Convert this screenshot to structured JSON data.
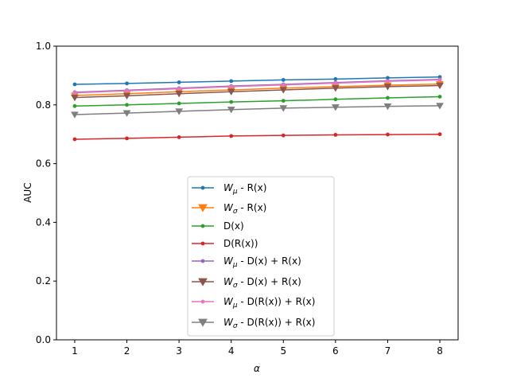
{
  "chart_data": {
    "type": "line",
    "title": "",
    "xlabel": "α",
    "ylabel": "AUC",
    "xlim": [
      0.65,
      8.35
    ],
    "ylim": [
      0.0,
      1.0
    ],
    "x": [
      1,
      2,
      3,
      4,
      5,
      6,
      7,
      8
    ],
    "xticks": [
      "1",
      "2",
      "3",
      "4",
      "5",
      "6",
      "7",
      "8"
    ],
    "yticks": [
      "0.0",
      "0.2",
      "0.4",
      "0.6",
      "0.8",
      "1.0"
    ],
    "grid": false,
    "legend_position": "lower center",
    "series": [
      {
        "name_main": "W",
        "name_sub": "μ",
        "name_rest": " - R(x)",
        "color": "#1f77b4",
        "marker": "circle",
        "values": [
          0.87,
          0.873,
          0.877,
          0.881,
          0.885,
          0.888,
          0.892,
          0.895
        ]
      },
      {
        "name_main": "W",
        "name_sub": "σ",
        "name_rest": " - R(x)",
        "color": "#ff7f0e",
        "marker": "triangle-down",
        "values": [
          0.832,
          0.838,
          0.845,
          0.851,
          0.857,
          0.862,
          0.867,
          0.871
        ]
      },
      {
        "name_main": "",
        "name_sub": "",
        "name_rest": "D(x)",
        "color": "#2ca02c",
        "marker": "circle",
        "values": [
          0.796,
          0.8,
          0.805,
          0.81,
          0.814,
          0.819,
          0.824,
          0.828
        ]
      },
      {
        "name_main": "",
        "name_sub": "",
        "name_rest": "D(R(x))",
        "color": "#d62728",
        "marker": "circle",
        "values": [
          0.683,
          0.686,
          0.69,
          0.694,
          0.696,
          0.698,
          0.699,
          0.7
        ]
      },
      {
        "name_main": "W",
        "name_sub": "μ",
        "name_rest": " - D(x) + R(x)",
        "color": "#9467bd",
        "marker": "circle",
        "values": [
          0.843,
          0.85,
          0.857,
          0.864,
          0.87,
          0.876,
          0.882,
          0.887
        ]
      },
      {
        "name_main": "W",
        "name_sub": "σ",
        "name_rest": " - D(x) + R(x)",
        "color": "#8c564b",
        "marker": "triangle-down",
        "values": [
          0.825,
          0.831,
          0.838,
          0.845,
          0.851,
          0.857,
          0.862,
          0.866
        ]
      },
      {
        "name_main": "W",
        "name_sub": "μ",
        "name_rest": " - D(R(x)) + R(x)",
        "color": "#e377c2",
        "marker": "circle",
        "values": [
          0.841,
          0.848,
          0.855,
          0.862,
          0.868,
          0.874,
          0.88,
          0.885
        ]
      },
      {
        "name_main": "W",
        "name_sub": "σ",
        "name_rest": " - D(R(x)) + R(x)",
        "color": "#7f7f7f",
        "marker": "triangle-down",
        "values": [
          0.767,
          0.772,
          0.778,
          0.784,
          0.789,
          0.792,
          0.795,
          0.797
        ]
      }
    ]
  }
}
